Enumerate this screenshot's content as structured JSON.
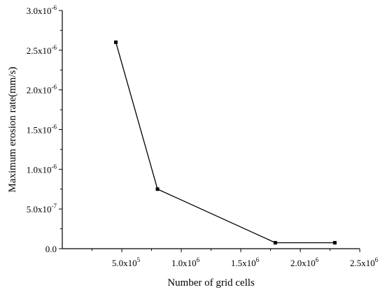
{
  "chart_data": {
    "type": "line",
    "title": "",
    "xlabel": "Number of grid cells",
    "ylabel": "Maximum erosion rate(mm/s)",
    "xlim": [
      0,
      2500000
    ],
    "ylim": [
      0,
      3e-06
    ],
    "grid": false,
    "legend": "none",
    "x_ticks": [
      {
        "value": 500000,
        "mantissa": "5.0x10",
        "exp": "5"
      },
      {
        "value": 1000000,
        "mantissa": "1.0x10",
        "exp": "6"
      },
      {
        "value": 1500000,
        "mantissa": "1.5x10",
        "exp": "6"
      },
      {
        "value": 2000000,
        "mantissa": "2.0x10",
        "exp": "6"
      },
      {
        "value": 2500000,
        "mantissa": "2.5x10",
        "exp": "6"
      }
    ],
    "y_ticks": [
      {
        "value": 0,
        "mantissa": "0.0",
        "exp": ""
      },
      {
        "value": 5e-07,
        "mantissa": "5.0x10",
        "exp": "-7"
      },
      {
        "value": 1e-06,
        "mantissa": "1.0x10",
        "exp": "-6"
      },
      {
        "value": 1.5e-06,
        "mantissa": "1.5x10",
        "exp": "-6"
      },
      {
        "value": 2e-06,
        "mantissa": "2.0x10",
        "exp": "-6"
      },
      {
        "value": 2.5e-06,
        "mantissa": "2.5x10",
        "exp": "-6"
      },
      {
        "value": 3e-06,
        "mantissa": "3.0x10",
        "exp": "-6"
      }
    ],
    "series": [
      {
        "x": [
          450000,
          800000,
          1790000,
          2290000
        ],
        "y": [
          2.6e-06,
          7.5e-07,
          7.5e-08,
          7.5e-08
        ],
        "color": "#000000",
        "marker": "square"
      }
    ]
  }
}
